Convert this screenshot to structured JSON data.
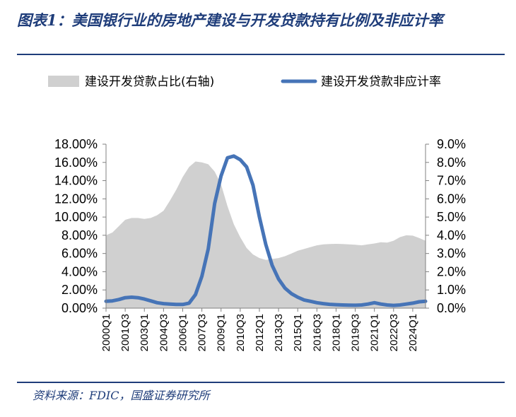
{
  "header": {
    "title": "图表1：美国银行业的房地产建设与开发贷款持有比例及非应计率"
  },
  "footer": {
    "source": "资料来源：FDIC，国盛证券研究所"
  },
  "chart_data": {
    "type": "area+line",
    "title": "",
    "xlabel": "",
    "ylabel_left": "",
    "ylabel_right": "",
    "x_range": [
      2000.0,
      2025.0
    ],
    "x_tick_labels": [
      "2000Q1",
      "2001Q3",
      "2003Q1",
      "2004Q3",
      "2006Q1",
      "2007Q3",
      "2009Q1",
      "2010Q3",
      "2012Q1",
      "2013Q3",
      "2015Q1",
      "2016Q3",
      "2018Q1",
      "2019Q3",
      "2021Q1",
      "2022Q3",
      "2024Q1"
    ],
    "x_tick_values": [
      2000.0,
      2001.5,
      2003.0,
      2004.5,
      2006.0,
      2007.5,
      2009.0,
      2010.5,
      2012.0,
      2013.5,
      2015.0,
      2016.5,
      2018.0,
      2019.5,
      2021.0,
      2022.5,
      2024.0
    ],
    "y_left": {
      "min": 0,
      "max": 18,
      "step": 2,
      "tick_labels": [
        "0.00%",
        "2.00%",
        "4.00%",
        "6.00%",
        "8.00%",
        "10.00%",
        "12.00%",
        "14.00%",
        "16.00%",
        "18.00%"
      ]
    },
    "y_right": {
      "min": 0,
      "max": 9,
      "step": 1,
      "tick_labels": [
        "0.0%",
        "1.0%",
        "2.0%",
        "3.0%",
        "4.0%",
        "5.0%",
        "6.0%",
        "7.0%",
        "8.0%",
        "9.0%"
      ]
    },
    "legend_position": "top",
    "grid": false,
    "series": [
      {
        "name": "建设开发贷款占比(右轴)",
        "kind": "area",
        "axis": "right",
        "color": "#d0d0d0",
        "points": [
          [
            2000.0,
            4.0
          ],
          [
            2000.5,
            4.15
          ],
          [
            2001.0,
            4.5
          ],
          [
            2001.5,
            4.85
          ],
          [
            2002.0,
            4.95
          ],
          [
            2002.5,
            4.95
          ],
          [
            2003.0,
            4.9
          ],
          [
            2003.5,
            4.95
          ],
          [
            2004.0,
            5.1
          ],
          [
            2004.5,
            5.35
          ],
          [
            2005.0,
            5.9
          ],
          [
            2005.5,
            6.5
          ],
          [
            2006.0,
            7.2
          ],
          [
            2006.5,
            7.75
          ],
          [
            2007.0,
            8.05
          ],
          [
            2007.5,
            8.0
          ],
          [
            2008.0,
            7.9
          ],
          [
            2008.5,
            7.5
          ],
          [
            2009.0,
            6.8
          ],
          [
            2009.5,
            5.6
          ],
          [
            2010.0,
            4.6
          ],
          [
            2010.5,
            3.9
          ],
          [
            2011.0,
            3.3
          ],
          [
            2011.5,
            2.95
          ],
          [
            2012.0,
            2.75
          ],
          [
            2012.5,
            2.65
          ],
          [
            2013.0,
            2.7
          ],
          [
            2013.5,
            2.75
          ],
          [
            2014.0,
            2.85
          ],
          [
            2014.5,
            3.0
          ],
          [
            2015.0,
            3.15
          ],
          [
            2015.5,
            3.25
          ],
          [
            2016.0,
            3.35
          ],
          [
            2016.5,
            3.45
          ],
          [
            2017.0,
            3.5
          ],
          [
            2017.5,
            3.52
          ],
          [
            2018.0,
            3.53
          ],
          [
            2018.5,
            3.52
          ],
          [
            2019.0,
            3.5
          ],
          [
            2019.5,
            3.48
          ],
          [
            2020.0,
            3.45
          ],
          [
            2020.5,
            3.5
          ],
          [
            2021.0,
            3.55
          ],
          [
            2021.5,
            3.62
          ],
          [
            2022.0,
            3.6
          ],
          [
            2022.5,
            3.7
          ],
          [
            2023.0,
            3.9
          ],
          [
            2023.5,
            4.0
          ],
          [
            2024.0,
            3.98
          ],
          [
            2024.5,
            3.85
          ],
          [
            2025.0,
            3.7
          ]
        ]
      },
      {
        "name": "建设开发贷款非应计率",
        "kind": "line",
        "axis": "left",
        "color": "#4674b7",
        "points": [
          [
            2000.0,
            0.75
          ],
          [
            2000.5,
            0.8
          ],
          [
            2001.0,
            0.95
          ],
          [
            2001.5,
            1.15
          ],
          [
            2002.0,
            1.2
          ],
          [
            2002.5,
            1.15
          ],
          [
            2003.0,
            1.0
          ],
          [
            2003.5,
            0.8
          ],
          [
            2004.0,
            0.6
          ],
          [
            2004.5,
            0.5
          ],
          [
            2005.0,
            0.45
          ],
          [
            2005.5,
            0.4
          ],
          [
            2006.0,
            0.4
          ],
          [
            2006.5,
            0.55
          ],
          [
            2007.0,
            1.5
          ],
          [
            2007.5,
            3.5
          ],
          [
            2008.0,
            6.5
          ],
          [
            2008.5,
            11.5
          ],
          [
            2009.0,
            14.5
          ],
          [
            2009.5,
            16.5
          ],
          [
            2010.0,
            16.7
          ],
          [
            2010.5,
            16.3
          ],
          [
            2011.0,
            15.5
          ],
          [
            2011.5,
            13.5
          ],
          [
            2012.0,
            10.0
          ],
          [
            2012.5,
            7.0
          ],
          [
            2013.0,
            4.7
          ],
          [
            2013.5,
            3.2
          ],
          [
            2014.0,
            2.2
          ],
          [
            2014.5,
            1.6
          ],
          [
            2015.0,
            1.2
          ],
          [
            2015.5,
            0.9
          ],
          [
            2016.0,
            0.75
          ],
          [
            2016.5,
            0.6
          ],
          [
            2017.0,
            0.5
          ],
          [
            2017.5,
            0.42
          ],
          [
            2018.0,
            0.38
          ],
          [
            2018.5,
            0.35
          ],
          [
            2019.0,
            0.33
          ],
          [
            2019.5,
            0.32
          ],
          [
            2020.0,
            0.35
          ],
          [
            2020.5,
            0.45
          ],
          [
            2021.0,
            0.6
          ],
          [
            2021.5,
            0.45
          ],
          [
            2022.0,
            0.35
          ],
          [
            2022.5,
            0.3
          ],
          [
            2023.0,
            0.35
          ],
          [
            2023.5,
            0.45
          ],
          [
            2024.0,
            0.55
          ],
          [
            2024.5,
            0.7
          ],
          [
            2025.0,
            0.75
          ]
        ]
      }
    ]
  }
}
